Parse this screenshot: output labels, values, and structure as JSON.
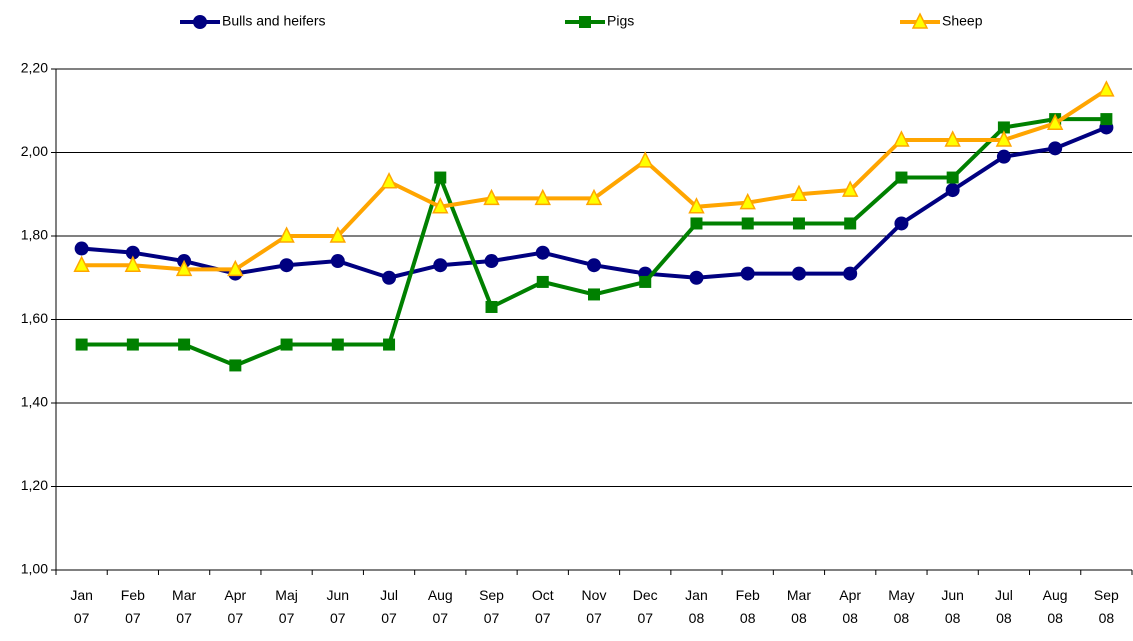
{
  "chart_data": {
    "type": "line",
    "categories": [
      "Jan 07",
      "Feb 07",
      "Mar 07",
      "Apr 07",
      "Maj 07",
      "Jun 07",
      "Jul 07",
      "Aug 07",
      "Sep 07",
      "Oct 07",
      "Nov 07",
      "Dec 07",
      "Jan 08",
      "Feb 08",
      "Mar 08",
      "Apr 08",
      "May 08",
      "Jun 08",
      "Jul 08",
      "Aug 08",
      "Sep 08"
    ],
    "series": [
      {
        "name": "Bulls and heifers",
        "color": "#000080",
        "marker": "circle",
        "values": [
          1.77,
          1.76,
          1.74,
          1.71,
          1.73,
          1.74,
          1.7,
          1.73,
          1.74,
          1.76,
          1.73,
          1.71,
          1.7,
          1.71,
          1.71,
          1.71,
          1.83,
          1.91,
          1.99,
          2.01,
          2.06
        ]
      },
      {
        "name": "Pigs",
        "color": "#008000",
        "marker": "square",
        "values": [
          1.54,
          1.54,
          1.54,
          1.49,
          1.54,
          1.54,
          1.54,
          1.94,
          1.63,
          1.69,
          1.66,
          1.69,
          1.83,
          1.83,
          1.83,
          1.83,
          1.94,
          1.94,
          2.06,
          2.08,
          2.08
        ]
      },
      {
        "name": "Sheep",
        "color": "#ffa500",
        "marker": "triangle",
        "values": [
          1.73,
          1.73,
          1.72,
          1.72,
          1.8,
          1.8,
          1.93,
          1.87,
          1.89,
          1.89,
          1.89,
          1.98,
          1.87,
          1.88,
          1.9,
          1.91,
          2.03,
          2.03,
          2.03,
          2.07,
          2.15
        ]
      }
    ],
    "ylim": [
      1.0,
      2.2
    ],
    "yticks": [
      {
        "value": 1.0,
        "label": "1,00"
      },
      {
        "value": 1.2,
        "label": "1,20"
      },
      {
        "value": 1.4,
        "label": "1,40"
      },
      {
        "value": 1.6,
        "label": "1,60"
      },
      {
        "value": 1.8,
        "label": "1,80"
      },
      {
        "value": 2.0,
        "label": "2,00"
      },
      {
        "value": 2.2,
        "label": "2,20"
      }
    ],
    "grid": true,
    "legend": "top"
  }
}
